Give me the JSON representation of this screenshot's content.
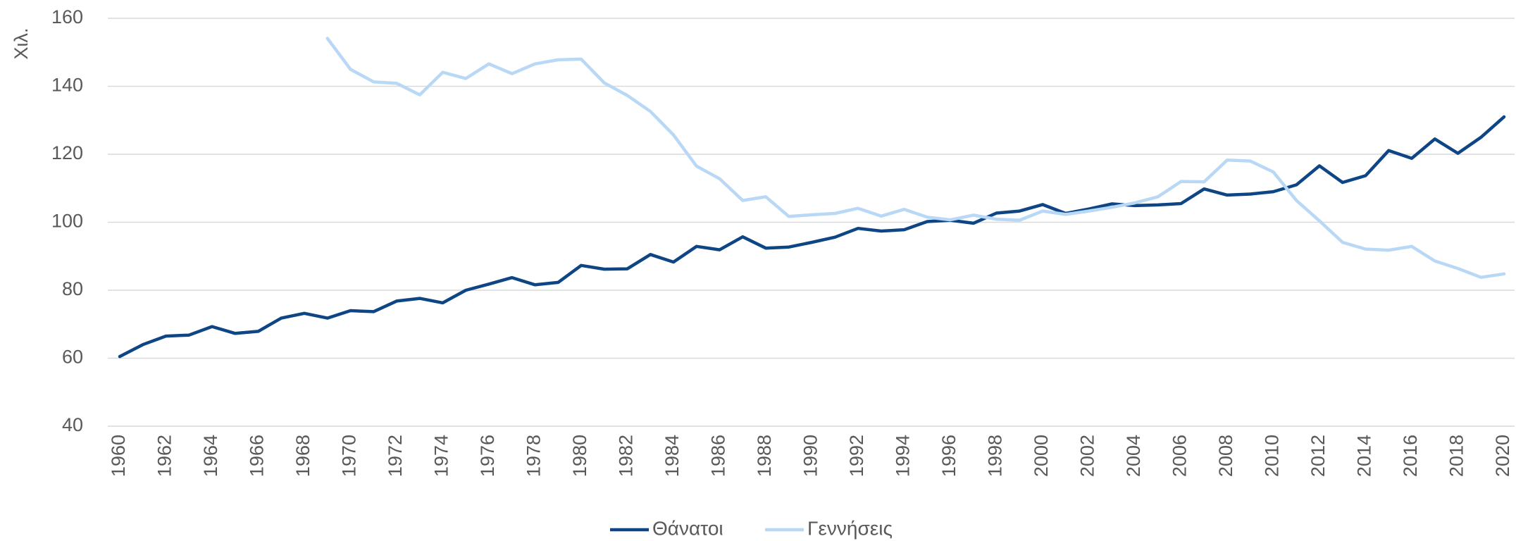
{
  "chart_data": {
    "type": "line",
    "ylabel": "Χιλ.",
    "x": [
      1960,
      1961,
      1962,
      1963,
      1964,
      1965,
      1966,
      1967,
      1968,
      1969,
      1970,
      1971,
      1972,
      1973,
      1974,
      1975,
      1976,
      1977,
      1978,
      1979,
      1980,
      1981,
      1982,
      1983,
      1984,
      1985,
      1986,
      1987,
      1988,
      1989,
      1990,
      1991,
      1992,
      1993,
      1994,
      1995,
      1996,
      1997,
      1998,
      1999,
      2000,
      2001,
      2002,
      2003,
      2004,
      2005,
      2006,
      2007,
      2008,
      2009,
      2010,
      2011,
      2012,
      2013,
      2014,
      2015,
      2016,
      2017,
      2018,
      2019,
      2020
    ],
    "series": [
      {
        "name": "Θάνατοι",
        "color": "#0e4584",
        "values": [
          60.5,
          64,
          66.5,
          66.8,
          69.3,
          67.3,
          67.9,
          71.8,
          73.2,
          71.8,
          74,
          73.7,
          76.8,
          77.6,
          76.3,
          80,
          81.8,
          83.7,
          81.6,
          82.3,
          87.3,
          86.2,
          86.3,
          90.5,
          88.3,
          92.9,
          91.9,
          95.7,
          92.4,
          92.7,
          94.1,
          95.6,
          98.2,
          97.4,
          97.8,
          100.2,
          100.6,
          99.7,
          102.7,
          103.3,
          105.2,
          102.6,
          103.9,
          105.4,
          104.9,
          105.1,
          105.5,
          109.8,
          108,
          108.3,
          109,
          111,
          116.6,
          111.7,
          113.7,
          121.1,
          118.8,
          124.5,
          120.3,
          125,
          131
        ]
      },
      {
        "name": "Γεννήσεις",
        "color": "#b8d8f6",
        "values": [
          null,
          null,
          null,
          null,
          null,
          null,
          null,
          null,
          null,
          154.1,
          145,
          141.3,
          140.9,
          137.5,
          144.1,
          142.3,
          146.6,
          143.7,
          146.6,
          147.8,
          148,
          141,
          137.3,
          132.6,
          125.7,
          116.5,
          112.8,
          106.4,
          107.5,
          101.7,
          102.2,
          102.6,
          104.1,
          101.8,
          103.8,
          101.5,
          100.7,
          102.1,
          100.9,
          100.6,
          103.3,
          102.3,
          103.3,
          104.4,
          105.7,
          107.5,
          112,
          111.9,
          118.3,
          118,
          114.8,
          106.4,
          100.4,
          94.1,
          92.1,
          91.8,
          92.9,
          88.6,
          86.4,
          83.8,
          84.8
        ]
      }
    ],
    "xlim": [
      1960,
      2020
    ],
    "xticks": [
      1960,
      1962,
      1964,
      1966,
      1968,
      1970,
      1972,
      1974,
      1976,
      1978,
      1980,
      1982,
      1984,
      1986,
      1988,
      1990,
      1992,
      1994,
      1996,
      1998,
      2000,
      2002,
      2004,
      2006,
      2008,
      2010,
      2012,
      2014,
      2016,
      2018,
      2020
    ],
    "ylim": [
      40,
      160
    ],
    "yticks": [
      40,
      60,
      80,
      100,
      120,
      140,
      160
    ],
    "grid": true,
    "legend": "bottom"
  }
}
